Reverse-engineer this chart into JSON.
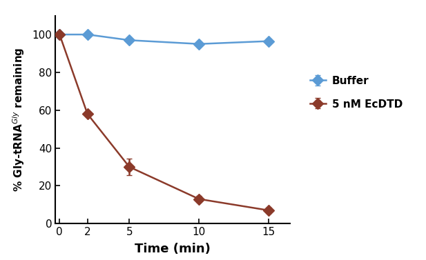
{
  "buffer_x": [
    0,
    2,
    5,
    10,
    15
  ],
  "buffer_y": [
    100,
    100,
    97,
    95,
    96.5
  ],
  "buffer_yerr": [
    0,
    0,
    0,
    0,
    0
  ],
  "ecdtd_x": [
    0,
    2,
    5,
    10,
    15
  ],
  "ecdtd_y": [
    100,
    58,
    30,
    13,
    7
  ],
  "ecdtd_yerr": [
    0,
    0,
    4.5,
    1.5,
    1.5
  ],
  "buffer_color": "#5B9BD5",
  "ecdtd_color": "#8B3A2A",
  "xlabel": "Time (min)",
  "ylabel": "% Gly-tRNA$^{Gly}$ remaining",
  "ylim": [
    0,
    110
  ],
  "xlim": [
    -0.3,
    16.5
  ],
  "xticks": [
    0,
    2,
    5,
    10,
    15
  ],
  "yticks": [
    0,
    20,
    40,
    60,
    80,
    100
  ],
  "legend_buffer": "Buffer",
  "legend_ecdtd": "5 nM EcDTD",
  "marker": "D",
  "markersize": 8,
  "linewidth": 1.8
}
